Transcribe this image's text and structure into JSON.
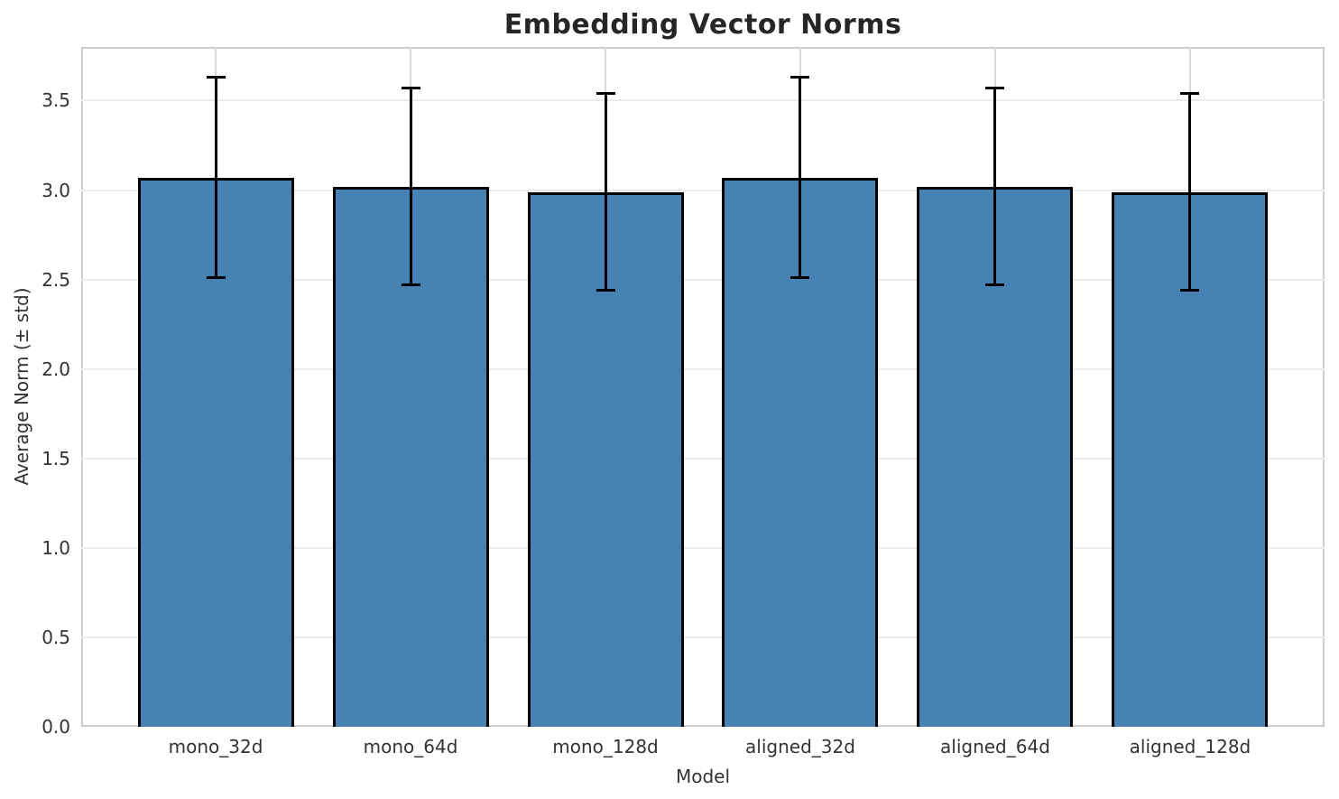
{
  "chart_data": {
    "type": "bar",
    "title": "Embedding Vector Norms",
    "xlabel": "Model",
    "ylabel": "Average Norm (± std)",
    "categories": [
      "mono_32d",
      "mono_64d",
      "mono_128d",
      "aligned_32d",
      "aligned_64d",
      "aligned_128d"
    ],
    "values": [
      3.07,
      3.02,
      2.99,
      3.07,
      3.02,
      2.99
    ],
    "error_std": [
      0.56,
      0.55,
      0.55,
      0.56,
      0.55,
      0.55
    ],
    "ylim": [
      0,
      3.8
    ],
    "ytick_step": 0.5,
    "ytick_labels": [
      "0.0",
      "0.5",
      "1.0",
      "1.5",
      "2.0",
      "2.5",
      "3.0",
      "3.5"
    ],
    "grid": "light gray horizontal lines at each y tick and vertical lines at each bar center",
    "legend_position": "none",
    "bar_color": "#4682B4",
    "bar_edge_color": "#000000",
    "error_bar_color": "#000000",
    "title_color": "#262626",
    "tick_label_color": "#333333"
  }
}
